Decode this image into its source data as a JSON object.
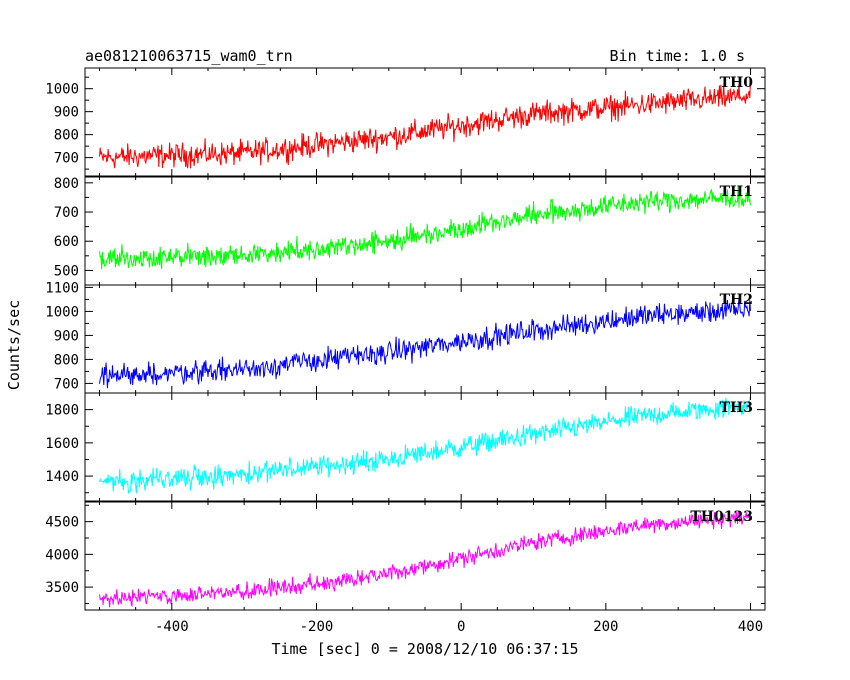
{
  "chart_data": {
    "type": "line",
    "title": "ae081210063715_wam0_trn",
    "subtitle": "Bin time: 1.0 s",
    "xlabel": "Time [sec] 0 = 2008/12/10 06:37:15",
    "ylabel": "Counts/sec",
    "xlim": [
      -520,
      420
    ],
    "x_ticks": [
      -400,
      -200,
      0,
      200,
      400
    ],
    "grid": false,
    "panels": [
      {
        "name": "TH0",
        "color": "#ff0000",
        "ylim": [
          620,
          1090
        ],
        "y_ticks": [
          700,
          800,
          900,
          1000
        ],
        "trend": [
          {
            "x": -500,
            "y": 700
          },
          {
            "x": -300,
            "y": 720
          },
          {
            "x": -100,
            "y": 790
          },
          {
            "x": 100,
            "y": 890
          },
          {
            "x": 250,
            "y": 930
          },
          {
            "x": 400,
            "y": 970
          }
        ],
        "noise_amplitude": 45
      },
      {
        "name": "TH1",
        "color": "#00ff00",
        "ylim": [
          450,
          820
        ],
        "y_ticks": [
          500,
          600,
          700,
          800
        ],
        "trend": [
          {
            "x": -500,
            "y": 540
          },
          {
            "x": -300,
            "y": 550
          },
          {
            "x": -100,
            "y": 600
          },
          {
            "x": 100,
            "y": 690
          },
          {
            "x": 250,
            "y": 735
          },
          {
            "x": 400,
            "y": 750
          }
        ],
        "noise_amplitude": 32
      },
      {
        "name": "TH2",
        "color": "#0000ff",
        "ylim": [
          660,
          1110
        ],
        "y_ticks": [
          700,
          800,
          900,
          1000,
          1100
        ],
        "trend": [
          {
            "x": -500,
            "y": 730
          },
          {
            "x": -300,
            "y": 760
          },
          {
            "x": -100,
            "y": 830
          },
          {
            "x": 100,
            "y": 920
          },
          {
            "x": 250,
            "y": 980
          },
          {
            "x": 400,
            "y": 1010
          }
        ],
        "noise_amplitude": 40
      },
      {
        "name": "TH3",
        "color": "#00ffff",
        "ylim": [
          1250,
          1900
        ],
        "y_ticks": [
          1400,
          1600,
          1800
        ],
        "trend": [
          {
            "x": -500,
            "y": 1370
          },
          {
            "x": -300,
            "y": 1410
          },
          {
            "x": -100,
            "y": 1500
          },
          {
            "x": 100,
            "y": 1650
          },
          {
            "x": 250,
            "y": 1760
          },
          {
            "x": 400,
            "y": 1830
          }
        ],
        "noise_amplitude": 55
      },
      {
        "name": "TH0123",
        "color": "#ff00ff",
        "ylim": [
          3150,
          4800
        ],
        "y_ticks": [
          3500,
          4000,
          4500
        ],
        "trend": [
          {
            "x": -500,
            "y": 3320
          },
          {
            "x": -300,
            "y": 3420
          },
          {
            "x": -100,
            "y": 3700
          },
          {
            "x": 100,
            "y": 4180
          },
          {
            "x": 250,
            "y": 4450
          },
          {
            "x": 400,
            "y": 4570
          }
        ],
        "noise_amplitude": 110
      }
    ]
  }
}
